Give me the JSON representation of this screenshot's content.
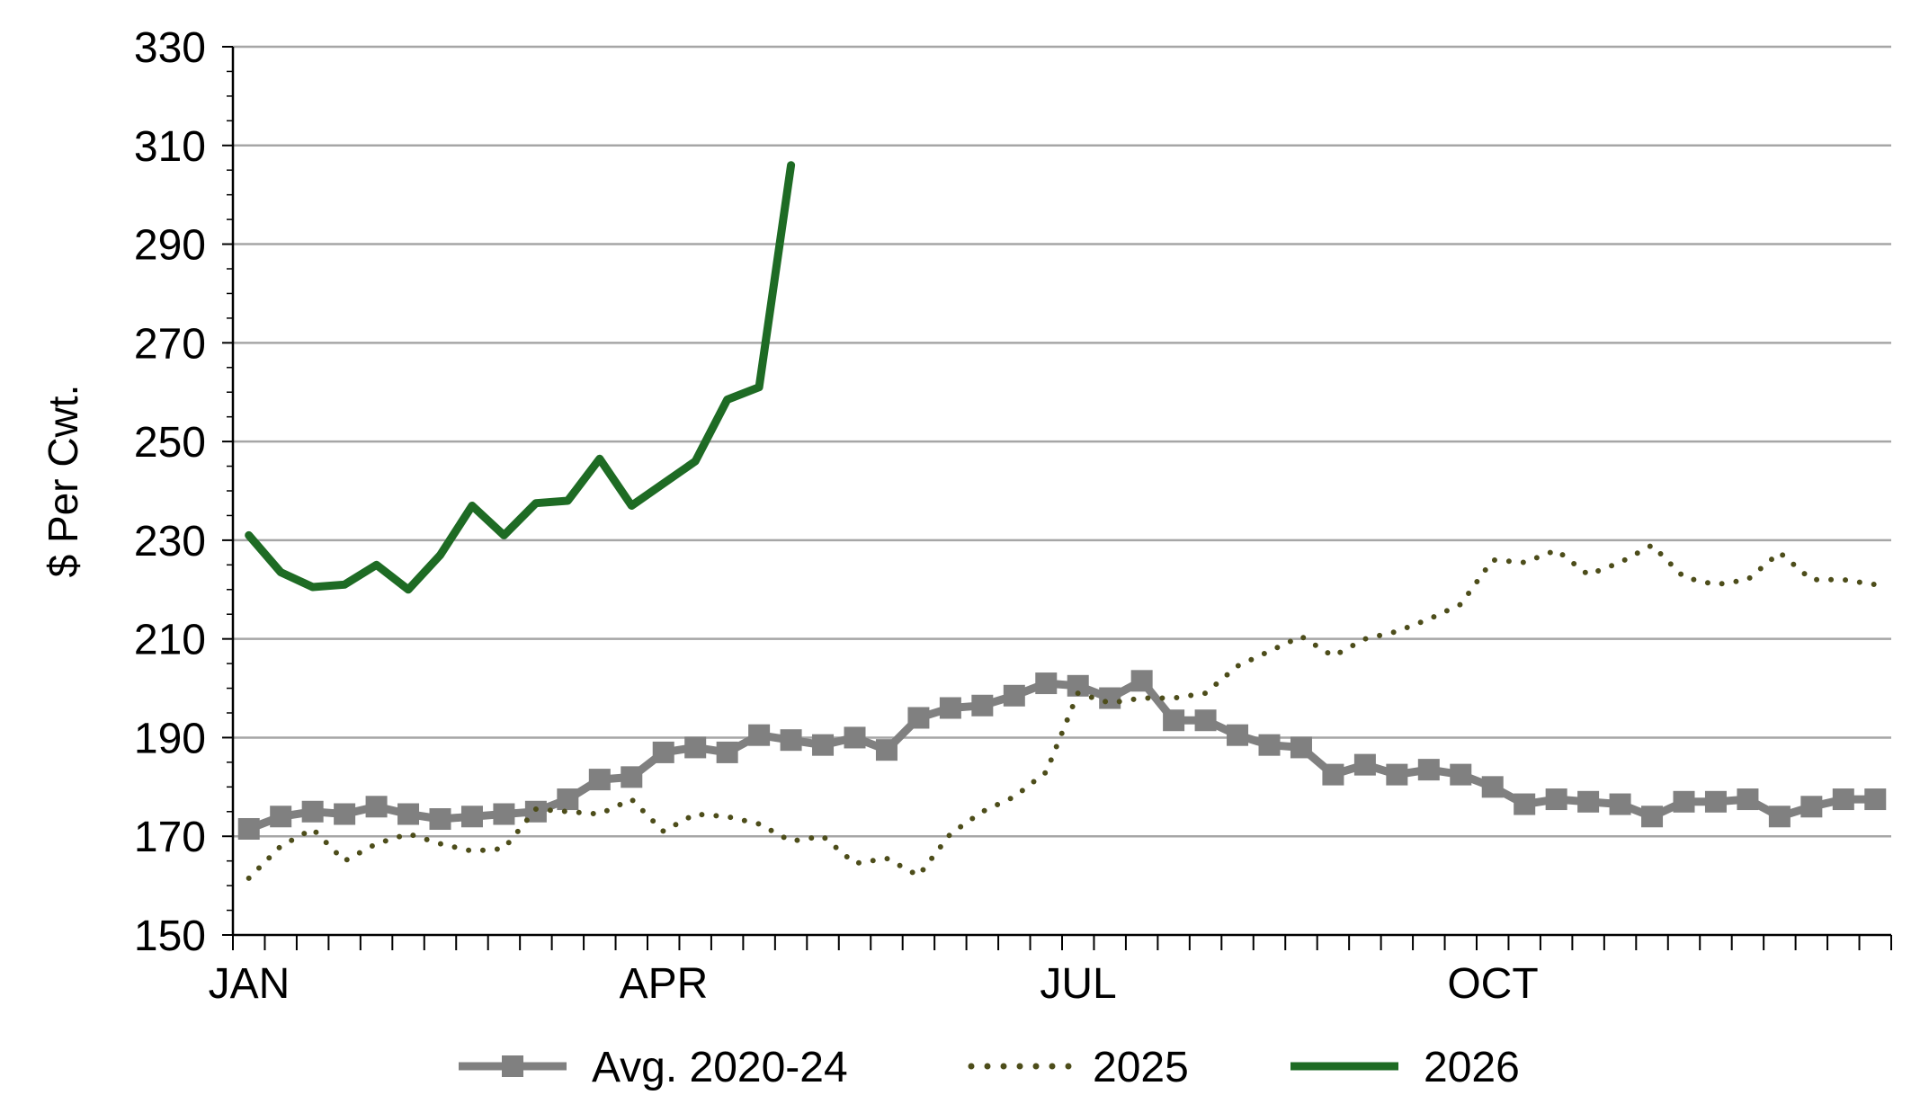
{
  "chart_data": {
    "type": "line",
    "title": "",
    "ylabel": "$ Per Cwt.",
    "xlabel": "",
    "ylim": [
      150,
      330
    ],
    "yticks": [
      150,
      170,
      190,
      210,
      230,
      250,
      270,
      290,
      310,
      330
    ],
    "x_month_labels": [
      {
        "label": "JAN",
        "week": 1
      },
      {
        "label": "APR",
        "week": 14
      },
      {
        "label": "JUL",
        "week": 27
      },
      {
        "label": "OCT",
        "week": 40
      }
    ],
    "weeks": 52,
    "grid": "horizontal",
    "legend_position": "bottom",
    "series": [
      {
        "name": "Avg. 2020-24",
        "color": "#808080",
        "style": "solid-square-markers",
        "values": [
          171.5,
          174,
          175,
          174.5,
          176,
          174.5,
          173.5,
          174,
          174.5,
          175,
          177.5,
          181.5,
          182,
          187,
          188,
          187,
          190.5,
          189.5,
          188.5,
          190,
          187.5,
          194,
          196,
          196.5,
          198.5,
          201,
          200.5,
          198,
          201.5,
          193.5,
          193.5,
          190.5,
          188.5,
          188,
          182.5,
          184.5,
          182.5,
          183.5,
          182.5,
          180,
          176.5,
          177.5,
          177,
          176.5,
          174,
          177,
          177,
          177.5,
          174,
          176,
          177.5,
          177.5
        ]
      },
      {
        "name": "2025",
        "color": "#4d4d1a",
        "style": "dotted",
        "values": [
          161.5,
          168,
          171.5,
          165,
          168.5,
          170.5,
          168.5,
          167,
          167.5,
          175.5,
          175,
          174.5,
          177.5,
          171,
          174.5,
          174,
          172.5,
          169,
          170,
          164.5,
          165.5,
          162,
          170.5,
          175,
          178,
          183,
          199,
          197,
          198,
          198,
          199,
          204.5,
          207.5,
          210.5,
          206.5,
          210,
          211.5,
          214,
          217,
          226,
          225.5,
          228,
          223,
          225.5,
          229,
          222.5,
          221,
          222,
          227.5,
          222,
          222,
          221
        ]
      },
      {
        "name": "2026",
        "color": "#1e6b24",
        "style": "solid",
        "values": [
          231,
          223.5,
          220.5,
          221,
          225,
          220,
          227,
          237,
          231,
          237.5,
          238,
          246.5,
          237,
          241.5,
          246,
          258.5,
          261,
          306
        ]
      }
    ]
  }
}
